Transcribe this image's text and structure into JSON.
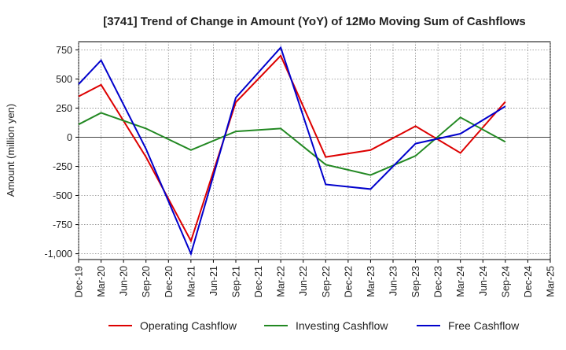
{
  "chart_data": {
    "type": "line",
    "title": "[3741]  Trend of Change in Amount (YoY) of 12Mo Moving Sum of Cashflows",
    "xlabel": "",
    "ylabel": "Amount (million yen)",
    "ylim": [
      -1050,
      820
    ],
    "yticks": [
      750,
      500,
      250,
      0,
      -250,
      -500,
      -750,
      -1000
    ],
    "ytick_labels": [
      "750",
      "500",
      "250",
      "0",
      "-250",
      "-500",
      "-750",
      "-1,000"
    ],
    "categories": [
      "Dec-19",
      "Mar-20",
      "Jun-20",
      "Sep-20",
      "Dec-20",
      "Mar-21",
      "Jun-21",
      "Sep-21",
      "Dec-21",
      "Mar-22",
      "Jun-22",
      "Sep-22",
      "Dec-22",
      "Mar-23",
      "Jun-23",
      "Sep-23",
      "Dec-23",
      "Mar-24",
      "Jun-24",
      "Sep-24",
      "Dec-24",
      "Mar-25"
    ],
    "grid": true,
    "legend_position": "bottom",
    "series": [
      {
        "name": "Operating Cashflow",
        "color": "#dd0000",
        "points": [
          [
            0,
            350
          ],
          [
            1,
            450
          ],
          [
            3,
            -170
          ],
          [
            5,
            -890
          ],
          [
            7,
            300
          ],
          [
            9,
            700
          ],
          [
            11,
            -170
          ],
          [
            13,
            -110
          ],
          [
            15,
            95
          ],
          [
            17,
            -135
          ],
          [
            19,
            305
          ]
        ]
      },
      {
        "name": "Investing Cashflow",
        "color": "#228822",
        "points": [
          [
            0,
            110
          ],
          [
            1,
            210
          ],
          [
            3,
            75
          ],
          [
            5,
            -110
          ],
          [
            7,
            50
          ],
          [
            9,
            75
          ],
          [
            11,
            -235
          ],
          [
            13,
            -325
          ],
          [
            15,
            -160
          ],
          [
            17,
            170
          ],
          [
            19,
            -40
          ]
        ]
      },
      {
        "name": "Free Cashflow",
        "color": "#0000cc",
        "points": [
          [
            0,
            455
          ],
          [
            1,
            660
          ],
          [
            3,
            -100
          ],
          [
            5,
            -1000
          ],
          [
            7,
            340
          ],
          [
            9,
            770
          ],
          [
            11,
            -405
          ],
          [
            13,
            -445
          ],
          [
            15,
            -55
          ],
          [
            17,
            30
          ],
          [
            19,
            265
          ]
        ]
      }
    ]
  }
}
